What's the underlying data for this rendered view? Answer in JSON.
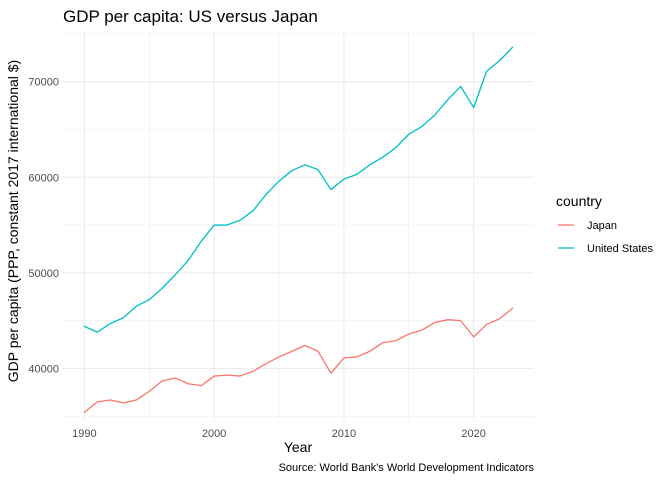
{
  "chart_data": {
    "type": "line",
    "title": "GDP per capita: US versus Japan",
    "xlabel": "Year",
    "ylabel": "GDP per capita (PPP, constant 2017 international $)",
    "caption": "Source: World Bank's World Development Indicators",
    "legend_title": "country",
    "legend_position": "right",
    "grid": true,
    "xlim": [
      1988.35,
      2024.65
    ],
    "ylim": [
      34500,
      75300
    ],
    "x_ticks": [
      1990,
      2000,
      2010,
      2020
    ],
    "y_ticks": [
      40000,
      50000,
      60000,
      70000
    ],
    "x": [
      1990,
      1991,
      1992,
      1993,
      1994,
      1995,
      1996,
      1997,
      1998,
      1999,
      2000,
      2001,
      2002,
      2003,
      2004,
      2005,
      2006,
      2007,
      2008,
      2009,
      2010,
      2011,
      2012,
      2013,
      2014,
      2015,
      2016,
      2017,
      2018,
      2019,
      2020,
      2021,
      2022,
      2023
    ],
    "series": [
      {
        "name": "Japan",
        "color": "#F8766D",
        "values": [
          35400,
          36500,
          36700,
          36400,
          36700,
          37600,
          38700,
          39000,
          38400,
          38200,
          39200,
          39300,
          39200,
          39700,
          40500,
          41200,
          41800,
          42400,
          41800,
          39500,
          41100,
          41200,
          41800,
          42700,
          42900,
          43600,
          44000,
          44800,
          45100,
          45000,
          43300,
          44600,
          45200,
          46300
        ]
      },
      {
        "name": "United States",
        "color": "#00BFC4",
        "values": [
          44400,
          43800,
          44700,
          45300,
          46500,
          47200,
          48400,
          49800,
          51300,
          53300,
          55000,
          55000,
          55500,
          56500,
          58200,
          59600,
          60700,
          61300,
          60800,
          58700,
          59800,
          60300,
          61300,
          62100,
          63100,
          64500,
          65300,
          66500,
          68100,
          69500,
          67300,
          71100,
          72200,
          73600
        ]
      }
    ]
  }
}
